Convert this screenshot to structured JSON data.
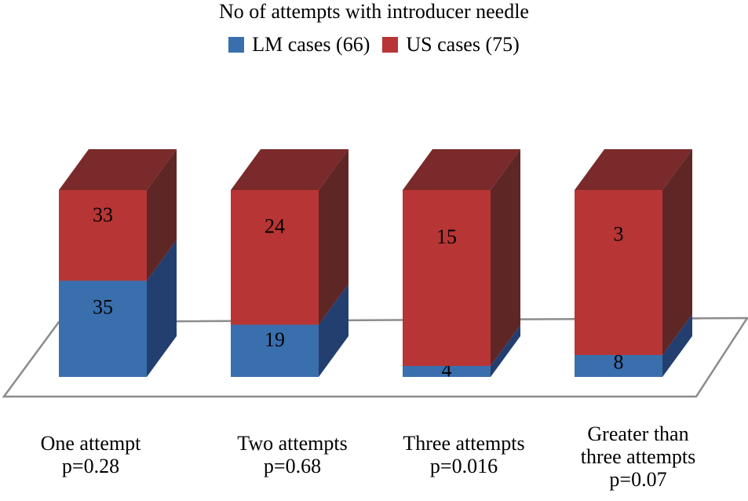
{
  "chart_data": {
    "type": "bar",
    "stacked": true,
    "style": "3d",
    "title": "No of attempts with introducer needle",
    "categories": [
      "One attempt\np=0.28",
      "Two attempts\np=0.68",
      "Three attempts\np=0.016",
      "Greater than\nthree attempts\np=0.07"
    ],
    "series": [
      {
        "name": "LM cases (66)",
        "values": [
          35,
          19,
          4,
          8
        ],
        "color": "#3a6fad",
        "side_color": "#233f70",
        "top_color": "#2f5b8f"
      },
      {
        "name": "US cases (75)",
        "values": [
          33,
          24,
          15,
          3
        ],
        "color": "#b83535",
        "side_color": "#5f2626",
        "top_color": "#7a2a2a"
      }
    ],
    "data_labels": [
      [
        "35",
        "19",
        "4",
        "8"
      ],
      [
        "33",
        "24",
        "15",
        "3"
      ]
    ],
    "legend_position": "top",
    "grid": false
  }
}
